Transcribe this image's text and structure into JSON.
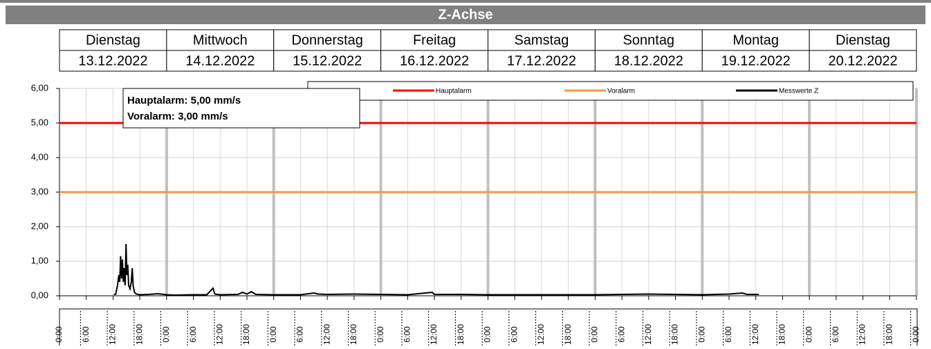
{
  "chart_data": {
    "type": "line",
    "title": "Z-Achse",
    "categories": [
      "Dienstag",
      "Mittwoch",
      "Donnerstag",
      "Freitag",
      "Samstag",
      "Sonntag",
      "Montag",
      "Dienstag"
    ],
    "dates": [
      "13.12.2022",
      "14.12.2022",
      "15.12.2022",
      "16.12.2022",
      "17.12.2022",
      "18.12.2022",
      "19.12.2022",
      "20.12.2022"
    ],
    "annotations": [
      "Hauptalarm: 5,00 mm/s",
      "Voralarm: 3,00 mm/s"
    ],
    "xlim": [
      0,
      192
    ],
    "xticks": [
      {
        "value": 0,
        "label": "0:00"
      },
      {
        "value": 6,
        "label": "6:00"
      },
      {
        "value": 12,
        "label": "12:00"
      },
      {
        "value": 18,
        "label": "18:00"
      },
      {
        "value": 24,
        "label": "0:00"
      },
      {
        "value": 30,
        "label": "6:00"
      },
      {
        "value": 36,
        "label": "12:00"
      },
      {
        "value": 42,
        "label": "18:00"
      },
      {
        "value": 48,
        "label": "0:00"
      },
      {
        "value": 54,
        "label": "6:00"
      },
      {
        "value": 60,
        "label": "12:00"
      },
      {
        "value": 66,
        "label": "18:00"
      },
      {
        "value": 72,
        "label": "0:00"
      },
      {
        "value": 78,
        "label": "6:00"
      },
      {
        "value": 84,
        "label": "12:00"
      },
      {
        "value": 90,
        "label": "18:00"
      },
      {
        "value": 96,
        "label": "0:00"
      },
      {
        "value": 102,
        "label": "6:00"
      },
      {
        "value": 108,
        "label": "12:00"
      },
      {
        "value": 114,
        "label": "18:00"
      },
      {
        "value": 120,
        "label": "0:00"
      },
      {
        "value": 126,
        "label": "6:00"
      },
      {
        "value": 132,
        "label": "12:00"
      },
      {
        "value": 138,
        "label": "18:00"
      },
      {
        "value": 144,
        "label": "0:00"
      },
      {
        "value": 150,
        "label": "6:00"
      },
      {
        "value": 156,
        "label": "12:00"
      },
      {
        "value": 162,
        "label": "18:00"
      },
      {
        "value": 168,
        "label": "0:00"
      },
      {
        "value": 174,
        "label": "6:00"
      },
      {
        "value": 180,
        "label": "12:00"
      },
      {
        "value": 186,
        "label": "18:00"
      },
      {
        "value": 192,
        "label": "0:00"
      }
    ],
    "ylim": [
      0,
      6
    ],
    "yticks": [
      {
        "value": 0,
        "label": "0,00"
      },
      {
        "value": 1,
        "label": "1,00"
      },
      {
        "value": 2,
        "label": "2,00"
      },
      {
        "value": 3,
        "label": "3,00"
      },
      {
        "value": 4,
        "label": "4,00"
      },
      {
        "value": 5,
        "label": "5,00"
      },
      {
        "value": 6,
        "label": "6,00"
      }
    ],
    "grid": true,
    "series": [
      {
        "name": "Hauptalarm",
        "color": "#ff0000",
        "x": [
          0,
          192
        ],
        "values": [
          5,
          5
        ]
      },
      {
        "name": "Voralarm",
        "color": "#f79646",
        "x": [
          0,
          192
        ],
        "values": [
          3,
          3
        ]
      },
      {
        "name": "Messwerte Z",
        "color": "#000000",
        "x": [
          12.2,
          12.6,
          13.0,
          13.3,
          13.5,
          13.7,
          13.9,
          14.1,
          14.3,
          14.5,
          14.7,
          14.9,
          15.1,
          15.3,
          15.5,
          15.8,
          16.1,
          16.3,
          16.5,
          16.8,
          17.2,
          18,
          20,
          22,
          24,
          26,
          30,
          33,
          34.4,
          34.8,
          36,
          40,
          41,
          42,
          43,
          44,
          48,
          54,
          57,
          58,
          60,
          66,
          72,
          78,
          83.5,
          84,
          90,
          96,
          102,
          108,
          114,
          120,
          126,
          132,
          138,
          144,
          150,
          153,
          154,
          156.7
        ],
        "values": [
          0.03,
          0.05,
          0.3,
          0.6,
          0.4,
          1.15,
          0.5,
          1.05,
          0.4,
          0.8,
          0.3,
          1.5,
          0.6,
          0.9,
          0.3,
          0.2,
          0.4,
          0.8,
          0.3,
          0.1,
          0.05,
          0.03,
          0.04,
          0.06,
          0.03,
          0.02,
          0.03,
          0.03,
          0.22,
          0.05,
          0.03,
          0.04,
          0.1,
          0.05,
          0.12,
          0.04,
          0.03,
          0.03,
          0.08,
          0.05,
          0.04,
          0.05,
          0.04,
          0.03,
          0.1,
          0.04,
          0.04,
          0.03,
          0.03,
          0.03,
          0.03,
          0.03,
          0.04,
          0.05,
          0.04,
          0.03,
          0.05,
          0.08,
          0.04,
          0.04
        ]
      }
    ]
  }
}
